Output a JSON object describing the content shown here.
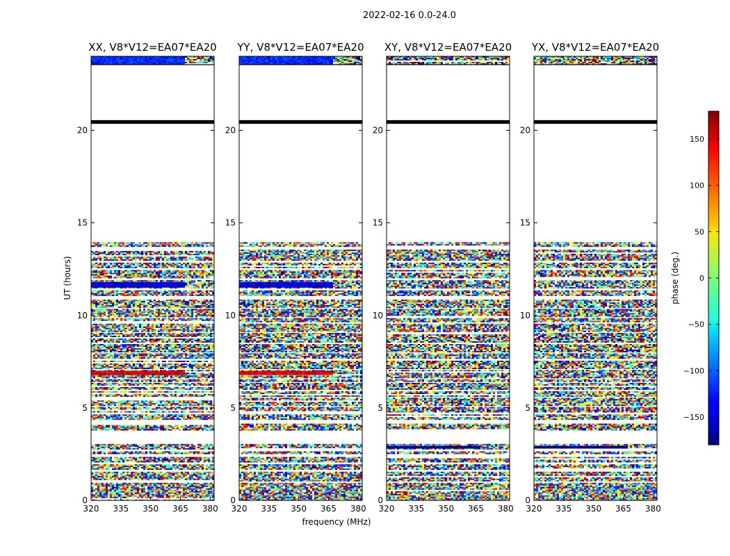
{
  "chart_data": {
    "type": "heatmap",
    "title": "2022-02-16 0.0-24.0",
    "xlabel": "frequency (MHz)",
    "ylabel": "UT (hours)",
    "xlim": [
      320,
      382
    ],
    "ylim": [
      0,
      24
    ],
    "x_ticks": [
      320,
      335,
      350,
      365,
      380
    ],
    "y_ticks": [
      0,
      5,
      10,
      15,
      20
    ],
    "panels": [
      {
        "name": "XX",
        "title": "XX, V8*V12=EA07*EA20"
      },
      {
        "name": "YY",
        "title": "YY, V8*V12=EA07*EA20"
      },
      {
        "name": "XY",
        "title": "XY, V8*V12=EA07*EA20"
      },
      {
        "name": "YX",
        "title": "YX, V8*V12=EA07*EA20"
      }
    ],
    "colorbar": {
      "label": "phase (deg.)",
      "range": [
        -180,
        180
      ],
      "ticks": [
        150,
        100,
        50,
        0,
        -50,
        -100,
        -150
      ],
      "tick_labels": [
        "150",
        "100",
        "50",
        "0",
        "−50",
        "−100",
        "−150"
      ],
      "colormap": "jet"
    },
    "data_hour_ranges": [
      [
        0.0,
        0.95
      ],
      [
        1.05,
        1.55
      ],
      [
        1.7,
        1.95
      ],
      [
        2.1,
        2.35
      ],
      [
        2.5,
        2.65
      ],
      [
        2.75,
        3.05
      ],
      [
        3.8,
        4.15
      ],
      [
        4.35,
        4.65
      ],
      [
        4.75,
        5.05
      ],
      [
        5.15,
        5.55
      ],
      [
        5.65,
        5.9
      ],
      [
        6.0,
        6.35
      ],
      [
        6.45,
        6.55
      ],
      [
        6.65,
        7.05
      ],
      [
        7.15,
        7.55
      ],
      [
        7.7,
        7.95
      ],
      [
        8.05,
        8.45
      ],
      [
        8.55,
        9.05
      ],
      [
        9.15,
        9.55
      ],
      [
        9.65,
        9.85
      ],
      [
        9.95,
        10.35
      ],
      [
        10.45,
        10.85
      ],
      [
        11.05,
        11.35
      ],
      [
        11.45,
        11.9
      ],
      [
        12.05,
        12.45
      ],
      [
        12.55,
        12.85
      ],
      [
        13.0,
        13.55
      ],
      [
        13.7,
        13.85
      ],
      [
        13.9,
        13.95
      ],
      [
        23.55,
        24.0
      ]
    ],
    "flagged_hour_ranges": [
      [
        20.35,
        20.55
      ]
    ],
    "strong_phase_rows": [
      {
        "panel": "XX",
        "hours": [
          6.8,
          7.0
        ],
        "phase": 150
      },
      {
        "panel": "XX",
        "hours": [
          11.55,
          11.8
        ],
        "phase": -150
      },
      {
        "panel": "XX",
        "hours": [
          23.6,
          24.0
        ],
        "phase": -120
      },
      {
        "panel": "YY",
        "hours": [
          6.8,
          7.0
        ],
        "phase": 150
      },
      {
        "panel": "YY",
        "hours": [
          11.55,
          11.8
        ],
        "phase": -150
      },
      {
        "panel": "YY",
        "hours": [
          23.6,
          24.0
        ],
        "phase": -120
      },
      {
        "panel": "XY",
        "hours": [
          2.85,
          2.95
        ],
        "phase": -170
      },
      {
        "panel": "YX",
        "hours": [
          2.85,
          2.95
        ],
        "phase": -170
      }
    ]
  }
}
